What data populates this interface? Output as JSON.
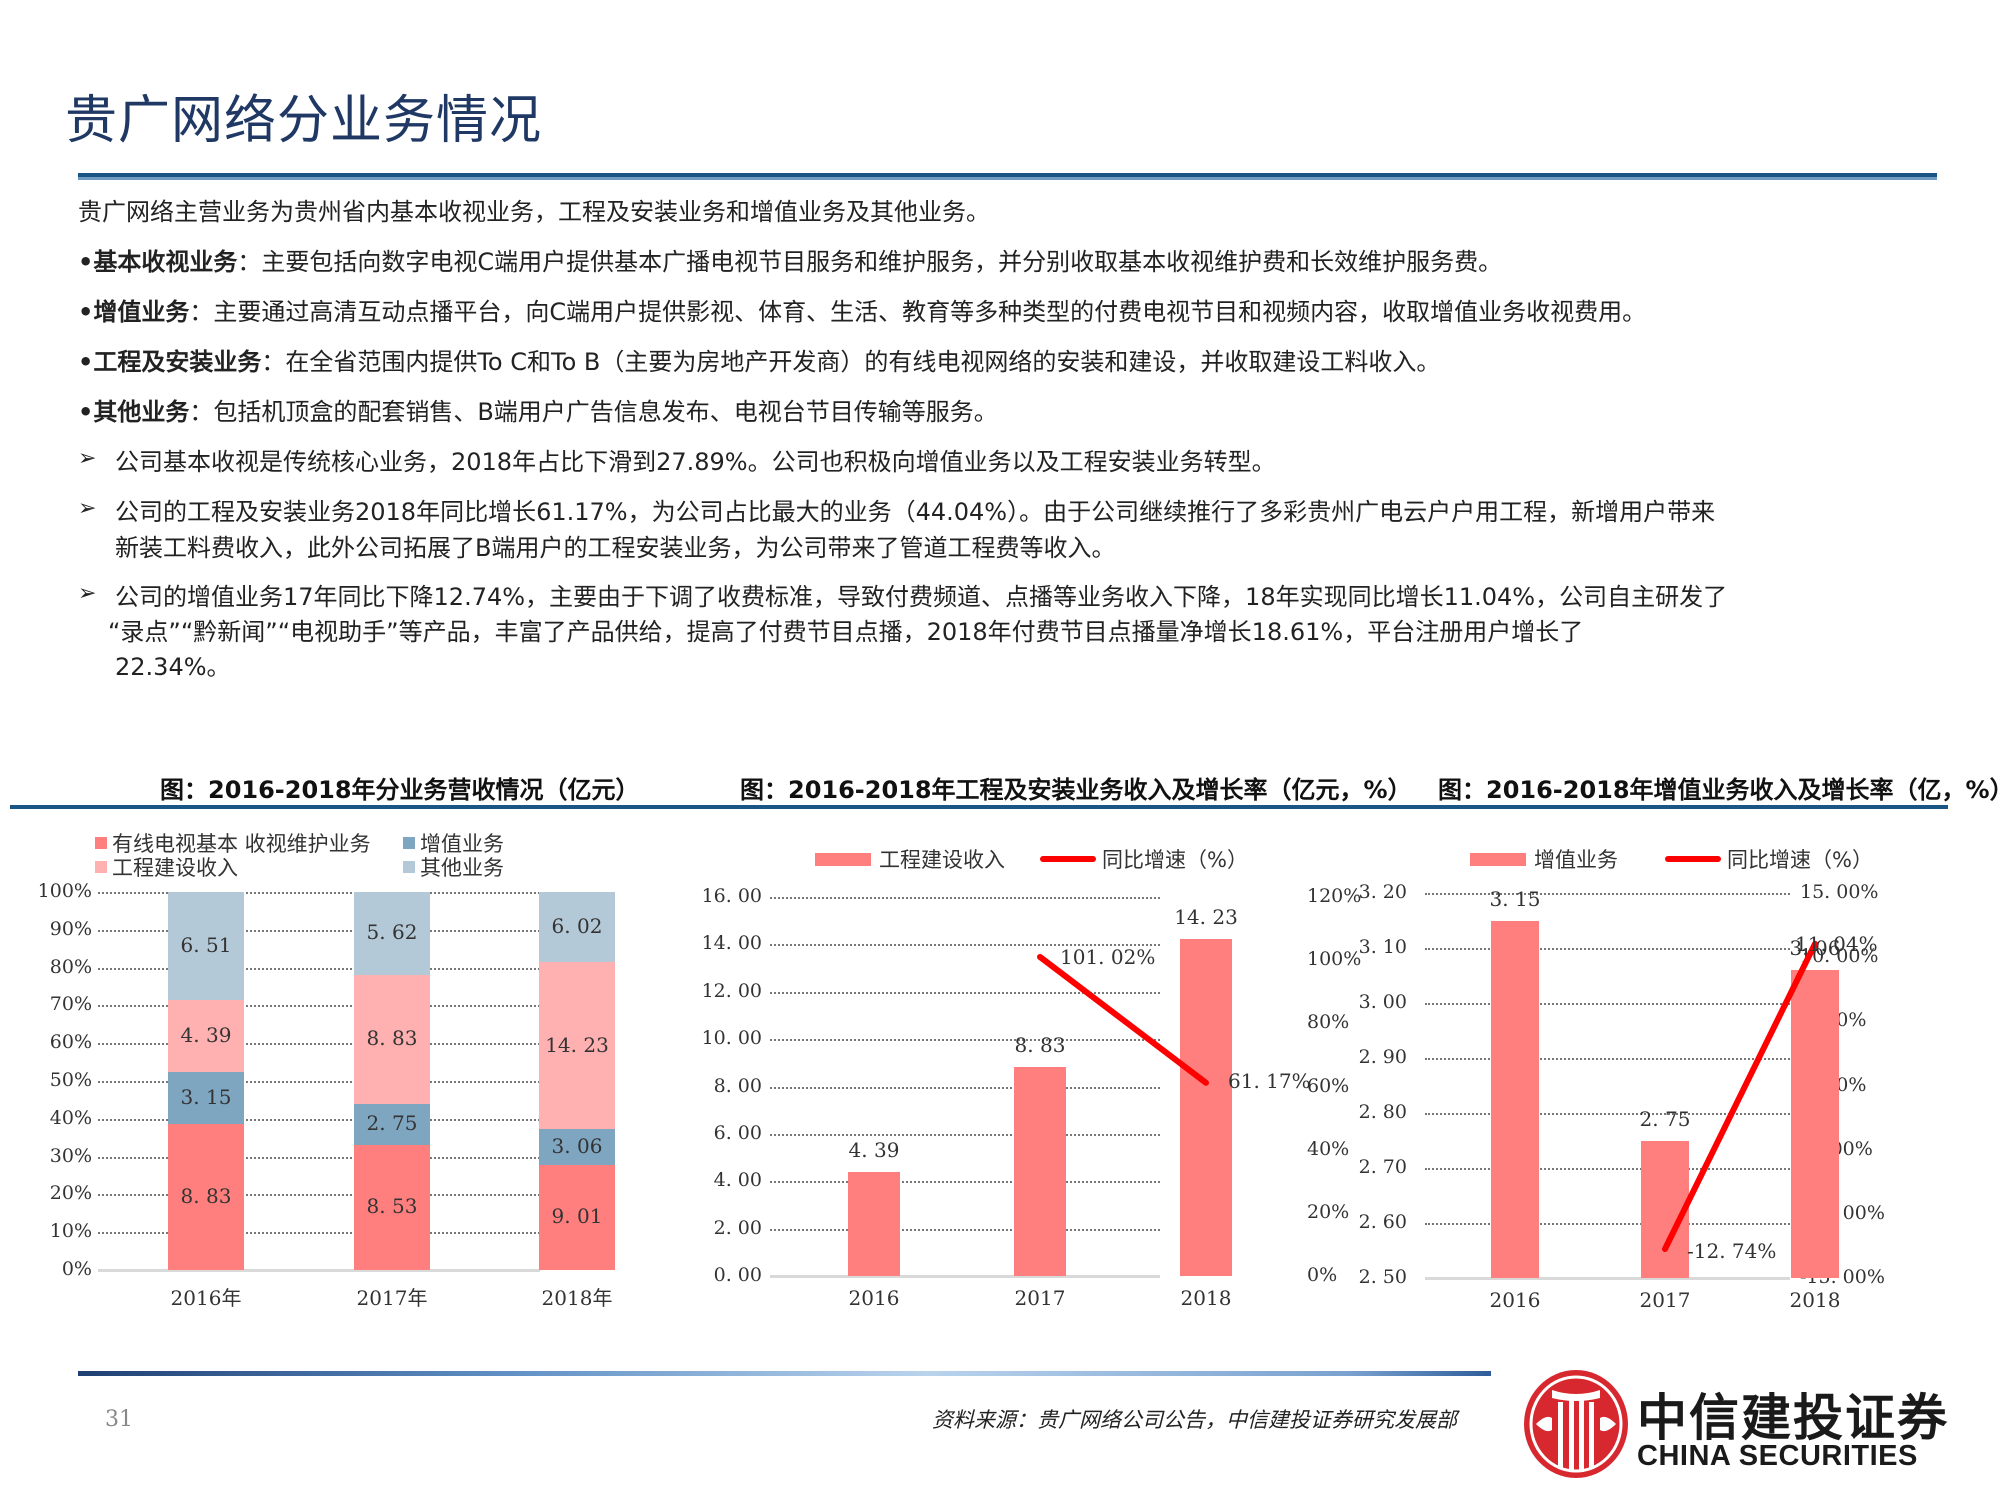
{
  "page": {
    "title": "贵广网络分业务情况",
    "page_number": "31",
    "source": "资料来源：贵广网络公司公告，中信建投证券研究发展部",
    "brand": {
      "cn": "中信建投证券",
      "en": "CHINA SECURITIES",
      "color": "#d7282f"
    }
  },
  "body": {
    "intro": "贵广网络主营业务为贵州省内基本收视业务，工程及安装业务和增值业务及其他业务。",
    "bullets": [
      {
        "term": "•基本收视业务",
        "text": "：主要包括向数字电视C端用户提供基本广播电视节目服务和维护服务，并分别收取基本收视维护费和长效维护服务费。"
      },
      {
        "term": "•增值业务",
        "text": "：主要通过高清互动点播平台，向C端用户提供影视、体育、生活、教育等多种类型的付费电视节目和视频内容，收取增值业务收视费用。"
      },
      {
        "term": "•工程及安装业务",
        "text": "：在全省范围内提供To C和To B（主要为房地产开发商）的有线电视网络的安装和建设，并收取建设工料收入。"
      },
      {
        "term": "•其他业务",
        "text": "：包括机顶盒的配套销售、B端用户广告信息发布、电视台节目传输等服务。"
      }
    ],
    "points": [
      {
        "lines": [
          "公司基本收视是传统核心业务，2018年占比下滑到27.89%。公司也积极向增值业务以及工程安装业务转型。"
        ]
      },
      {
        "lines": [
          "公司的工程及安装业务2018年同比增长61.17%，为公司占比最大的业务（44.04%）。由于公司继续推行了多彩贵州广电云户户用工程，新增用户带来",
          "新装工料费收入，此外公司拓展了B端用户的工程安装业务，为公司带来了管道工程费等收入。"
        ]
      },
      {
        "lines": [
          "公司的增值业务17年同比下降12.74%，主要由于下调了收费标准，导致付费频道、点播等业务收入下降，18年实现同比增长11.04%，公司自主研发了",
          "“录点”“黔新闻”“电视助手”等产品，丰富了产品供给，提高了付费节目点播，2018年付费节目点播量净增长18.61%，平台注册用户增长了",
          "22.34%。"
        ]
      }
    ]
  },
  "colors": {
    "title": "#1f3864",
    "rule": "#1a5683",
    "basic": "#ff7f7f",
    "value_added": "#7fa6c0",
    "engineering": "#ffb0b0",
    "other": "#b4c9d8",
    "bar": "#ff7f7f",
    "line": "#ff0000"
  },
  "chart_data": [
    {
      "type": "bar",
      "stacked": "percent",
      "title": "图：2016-2018年分业务营收情况（亿元）",
      "categories": [
        "2016年",
        "2017年",
        "2018年"
      ],
      "series": [
        {
          "name": "有线电视基本 收视维护业务",
          "values": [
            8.83,
            8.53,
            9.01
          ]
        },
        {
          "name": "增值业务",
          "values": [
            3.15,
            2.75,
            3.06
          ]
        },
        {
          "name": "工程建设收入",
          "values": [
            4.39,
            8.83,
            14.23
          ]
        },
        {
          "name": "其他业务",
          "values": [
            6.51,
            5.62,
            6.02
          ]
        }
      ],
      "yticks": [
        "100%",
        "90%",
        "80%",
        "70%",
        "60%",
        "50%",
        "40%",
        "30%",
        "20%",
        "10%",
        "0%"
      ],
      "ylim": [
        0,
        100
      ],
      "legend_position": "top-left",
      "grid": true
    },
    {
      "type": "bar+line",
      "title": "图：2016-2018年工程及安装业务收入及增长率（亿元，%）",
      "categories": [
        "2016",
        "2017",
        "2018"
      ],
      "series": [
        {
          "name": "工程建设收入",
          "type": "bar",
          "axis": "left",
          "values": [
            4.39,
            8.83,
            14.23
          ],
          "labels": [
            "4.39",
            "8.83",
            "14.23"
          ]
        },
        {
          "name": "同比增速（%）",
          "type": "line",
          "axis": "right",
          "values": [
            null,
            101.02,
            61.17
          ],
          "labels": [
            "",
            "101.02%",
            "61.17%"
          ]
        }
      ],
      "yticks_left": [
        "16.00",
        "14.00",
        "12.00",
        "10.00",
        "8.00",
        "6.00",
        "4.00",
        "2.00",
        "0.00"
      ],
      "yticks_right": [
        "120%",
        "100%",
        "80%",
        "60%",
        "40%",
        "20%",
        "0%"
      ],
      "ylim_left": [
        0,
        16
      ],
      "ylim_right": [
        0,
        120
      ],
      "legend_position": "top",
      "grid": true
    },
    {
      "type": "bar+line",
      "title": "图：2016-2018年增值业务收入及增长率（亿，%）",
      "categories": [
        "2016",
        "2017",
        "2018"
      ],
      "series": [
        {
          "name": "增值业务",
          "type": "bar",
          "axis": "left",
          "values": [
            3.15,
            2.75,
            3.06
          ],
          "labels": [
            "3.15",
            "2.75",
            "3.06"
          ]
        },
        {
          "name": "同比增速（%）",
          "type": "line",
          "axis": "right",
          "values": [
            null,
            -12.74,
            11.04
          ],
          "labels": [
            "",
            "-12.74%",
            "11.04%"
          ]
        }
      ],
      "yticks_left": [
        "3.20",
        "3.10",
        "3.00",
        "2.90",
        "2.80",
        "2.70",
        "2.60",
        "2.50"
      ],
      "yticks_right": [
        "15.00%",
        "10.00%",
        "5.00%",
        "0.00%",
        "-5.00%",
        "-10.00%",
        "-15.00%"
      ],
      "ylim_left": [
        2.5,
        3.2
      ],
      "ylim_right": [
        -15,
        15
      ],
      "legend_position": "top",
      "grid": true
    }
  ]
}
